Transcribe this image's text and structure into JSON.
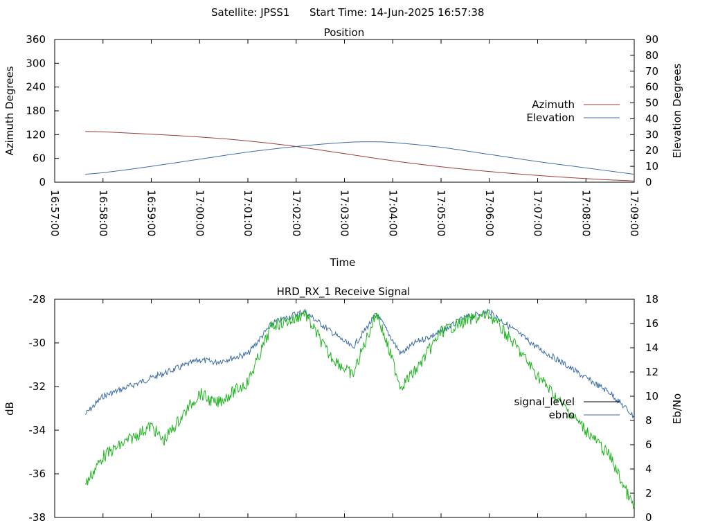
{
  "header": {
    "satellite_label": "Satellite: JPSS1",
    "start_time_label": "Start Time: 14-Jun-2025 16:57:38"
  },
  "colors": {
    "azimuth": "#a03a3a",
    "elevation": "#3d6ea5",
    "signal_level_line": "#000000",
    "ebno": "#3d6ea5",
    "signal_trace": "#1fb41f",
    "axes": "#000000",
    "background": "#ffffff"
  },
  "chart_data": [
    {
      "type": "line",
      "title": "Position",
      "xlabel": "Time",
      "ylabel": "Azimuth Degrees",
      "y2label": "Elevation Degrees",
      "xlim": [
        "16:57:00",
        "17:09:00"
      ],
      "ylim": [
        0,
        360
      ],
      "y2lim": [
        0,
        90
      ],
      "x_ticks": [
        "16:57:00",
        "16:58:00",
        "16:59:00",
        "17:00:00",
        "17:01:00",
        "17:02:00",
        "17:03:00",
        "17:04:00",
        "17:05:00",
        "17:06:00",
        "17:07:00",
        "17:08:00",
        "17:09:00"
      ],
      "y_ticks": [
        "0",
        "60",
        "120",
        "180",
        "240",
        "300",
        "360"
      ],
      "y2_ticks": [
        "0",
        "10",
        "20",
        "30",
        "40",
        "50",
        "60",
        "70",
        "80",
        "90"
      ],
      "legend_position": "right",
      "grid": false,
      "series": [
        {
          "name": "Azimuth",
          "axis": "y1",
          "x": [
            "16:57:38",
            "16:58:00",
            "16:59:00",
            "17:00:00",
            "17:01:00",
            "17:02:00",
            "17:03:00",
            "17:04:00",
            "17:05:00",
            "17:06:00",
            "17:07:00",
            "17:08:00",
            "17:09:00"
          ],
          "values": [
            128,
            127,
            121,
            114,
            104,
            90,
            72,
            54,
            39,
            27,
            17,
            9,
            3
          ]
        },
        {
          "name": "Elevation",
          "axis": "y2",
          "x": [
            "16:57:38",
            "16:58:00",
            "16:59:00",
            "17:00:00",
            "17:01:00",
            "17:02:00",
            "17:03:00",
            "17:03:30",
            "17:04:00",
            "17:05:00",
            "17:06:00",
            "17:07:00",
            "17:08:00",
            "17:09:00"
          ],
          "values": [
            5,
            6,
            10,
            14.5,
            19,
            22.5,
            25,
            25.5,
            25,
            22,
            17.5,
            13,
            9,
            5
          ]
        }
      ]
    },
    {
      "type": "line",
      "title": "HRD_RX_1 Receive Signal",
      "xlabel": "",
      "ylabel": "dB",
      "y2label": "Eb/No",
      "ylim": [
        -38,
        -28
      ],
      "y2lim": [
        0,
        18
      ],
      "y_ticks": [
        "-38",
        "-36",
        "-34",
        "-32",
        "-30",
        "-28"
      ],
      "y2_ticks": [
        "0",
        "2",
        "4",
        "6",
        "8",
        "10",
        "12",
        "14",
        "16",
        "18"
      ],
      "x_tick_count": 13,
      "legend_position": "right",
      "grid": false,
      "series": [
        {
          "name": "signal_level",
          "axis": "y1",
          "x": [
            "16:57:38",
            "16:58:00",
            "16:59:00",
            "16:59:15",
            "17:00:00",
            "17:00:20",
            "17:01:00",
            "17:01:30",
            "17:02:00",
            "17:02:10",
            "17:02:40",
            "17:03:10",
            "17:03:40",
            "17:04:10",
            "17:04:30",
            "17:05:00",
            "17:05:30",
            "17:06:00",
            "17:06:30",
            "17:07:00",
            "17:07:30",
            "17:08:00",
            "17:08:30",
            "17:09:00"
          ],
          "values": [
            -36.5,
            -35.2,
            -33.8,
            -34.5,
            -32.3,
            -32.8,
            -31.8,
            -29.2,
            -28.9,
            -28.6,
            -30.5,
            -31.5,
            -28.6,
            -32.0,
            -31.2,
            -29.5,
            -29.0,
            -28.7,
            -30.0,
            -31.5,
            -32.8,
            -34.0,
            -35.2,
            -37.6
          ]
        },
        {
          "name": "ebno",
          "axis": "y2",
          "x": [
            "16:57:38",
            "16:58:00",
            "16:59:00",
            "17:00:00",
            "17:00:20",
            "17:01:00",
            "17:01:30",
            "17:02:00",
            "17:02:10",
            "17:02:40",
            "17:03:10",
            "17:03:40",
            "17:04:10",
            "17:04:30",
            "17:05:00",
            "17:05:30",
            "17:06:00",
            "17:06:30",
            "17:07:00",
            "17:07:30",
            "17:08:00",
            "17:08:30",
            "17:09:00"
          ],
          "values": [
            8.5,
            10.0,
            11.5,
            13.0,
            12.8,
            13.5,
            16.0,
            16.8,
            17.0,
            15.5,
            14.0,
            16.8,
            13.5,
            14.5,
            15.3,
            16.5,
            17.0,
            15.5,
            14.0,
            12.8,
            11.5,
            10.3,
            8.3
          ]
        }
      ]
    }
  ]
}
